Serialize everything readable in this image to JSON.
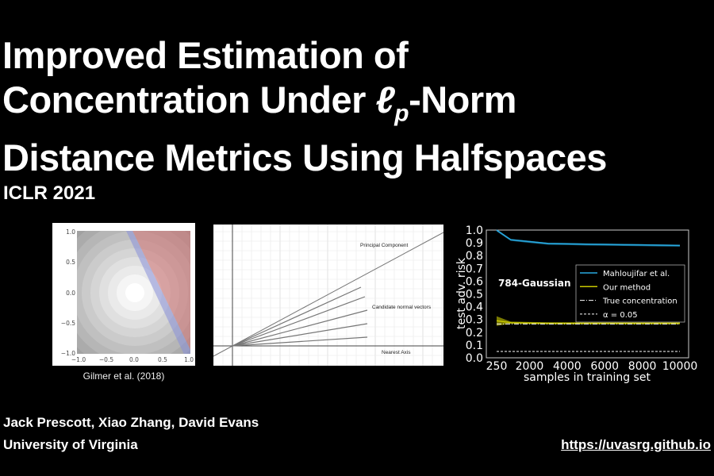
{
  "title": {
    "line1": "Improved Estimation of",
    "line2_pre": "Concentration Under ",
    "line2_l": "ℓ",
    "line2_p": "p",
    "line2_post": "-Norm",
    "line3": "Distance Metrics Using Halfspaces"
  },
  "venue": "ICLR 2021",
  "figure1": {
    "caption": "Gilmer et al. (2018)",
    "x_ticks": [
      "−1.0",
      "−0.5",
      "0.0",
      "0.5",
      "1.0"
    ],
    "y_ticks": [
      "1.0",
      "0.5",
      "0.0",
      "−0.5",
      "−1.0"
    ]
  },
  "figure2": {
    "labels": {
      "principal": "Principal Component",
      "candidates": "Candidate normal vectors",
      "axis": "Nearest Axis"
    }
  },
  "chart_data": {
    "type": "line",
    "title": "784-Gaussian",
    "xlabel": "samples in training set",
    "ylabel": "test adv. risk",
    "x_ticks": [
      "250",
      "2000",
      "4000",
      "6000",
      "8000",
      "10000"
    ],
    "x_tick_values": [
      250,
      2000,
      4000,
      6000,
      8000,
      10000
    ],
    "y_ticks": [
      "0.0",
      "0.1",
      "0.2",
      "0.3",
      "0.4",
      "0.5",
      "0.6",
      "0.7",
      "0.8",
      "0.9",
      "1.0"
    ],
    "xlim": [
      250,
      10000
    ],
    "ylim": [
      0,
      1
    ],
    "legend": "center-right",
    "x": [
      250,
      1000,
      2000,
      3000,
      4000,
      5000,
      6000,
      7000,
      8000,
      9000,
      10000
    ],
    "series": [
      {
        "name": "Mahloujifar et al.",
        "color": "#29a9e0",
        "values": [
          1.0,
          0.925,
          0.91,
          0.895,
          0.893,
          0.89,
          0.888,
          0.886,
          0.884,
          0.882,
          0.88
        ]
      },
      {
        "name": "Our method",
        "color": "#c8c800",
        "values": [
          0.29,
          0.275,
          0.272,
          0.27,
          0.27,
          0.27,
          0.27,
          0.27,
          0.27,
          0.27,
          0.27
        ]
      },
      {
        "name": "True concentration",
        "color": "#ffffff",
        "values": [
          0.265,
          0.265,
          0.265,
          0.265,
          0.265,
          0.265,
          0.265,
          0.265,
          0.265,
          0.265,
          0.265
        ]
      },
      {
        "name": "α = 0.05",
        "color": "#ffffff",
        "values": [
          0.05,
          0.05,
          0.05,
          0.05,
          0.05,
          0.05,
          0.05,
          0.05,
          0.05,
          0.05,
          0.05
        ]
      }
    ]
  },
  "footer": {
    "authors": "Jack Prescott, Xiao Zhang, David Evans",
    "affiliation": "University of Virginia",
    "url": "https://uvasrg.github.io"
  }
}
